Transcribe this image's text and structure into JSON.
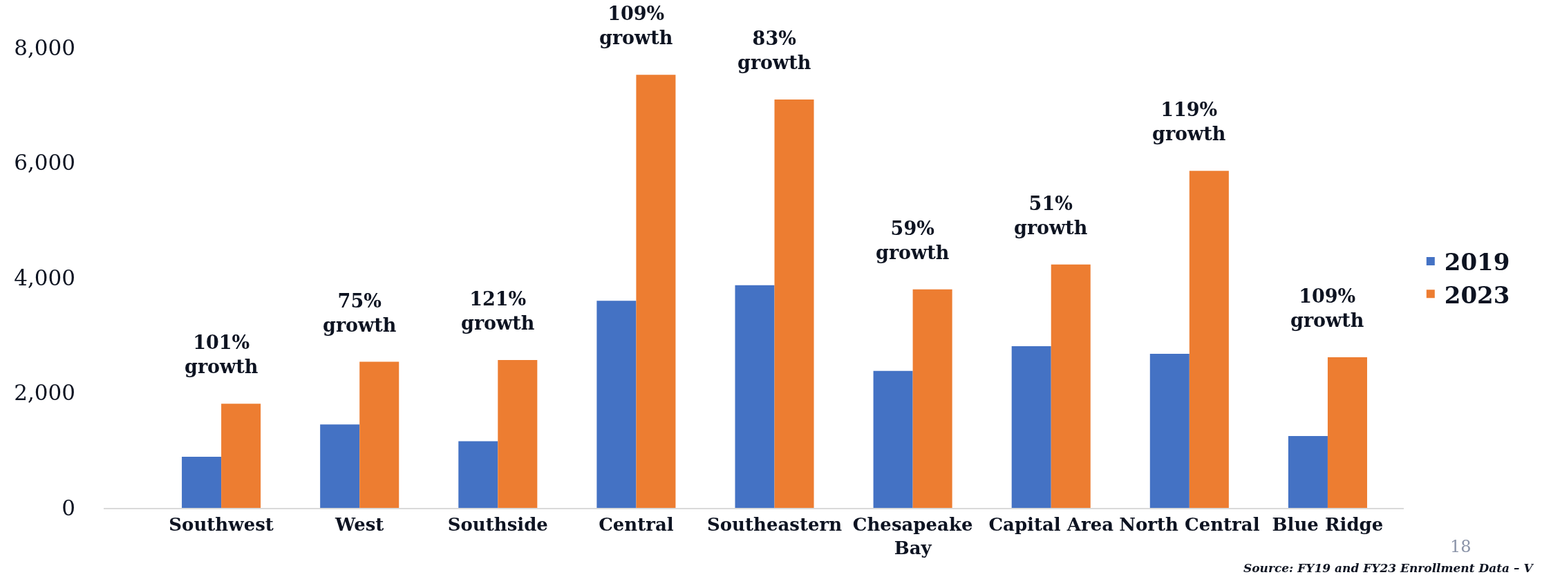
{
  "chart_data": {
    "type": "bar",
    "categories": [
      "Southwest",
      "West",
      "Southside",
      "Central",
      "Southeastern",
      "Chesapeake\nBay",
      "Capital Area",
      "North Central",
      "Blue Ridge"
    ],
    "series": [
      {
        "name": "2019",
        "color": "#4472c4",
        "values": [
          890,
          1450,
          1160,
          3600,
          3870,
          2380,
          2810,
          2680,
          1250
        ]
      },
      {
        "name": "2023",
        "color": "#ed7d31",
        "values": [
          1810,
          2540,
          2570,
          7530,
          7100,
          3800,
          4230,
          5860,
          2620
        ]
      }
    ],
    "ylim": [
      0,
      8000
    ],
    "yticks": [
      {
        "value": 0,
        "label": "0"
      },
      {
        "value": 2000,
        "label": "2,000"
      },
      {
        "value": 4000,
        "label": "4,000"
      },
      {
        "value": 6000,
        "label": "6,000"
      },
      {
        "value": 8000,
        "label": "8,000"
      }
    ],
    "legend": "right",
    "annotations": [
      "101%\ngrowth",
      "75%\ngrowth",
      "121%\ngrowth",
      "109%\ngrowth",
      "83%\ngrowth",
      "59%\ngrowth",
      "51%\ngrowth",
      "119%\ngrowth",
      "109%\ngrowth",
      "18",
      "Source: FY19 and FY23 Enrollment Data – V"
    ]
  }
}
